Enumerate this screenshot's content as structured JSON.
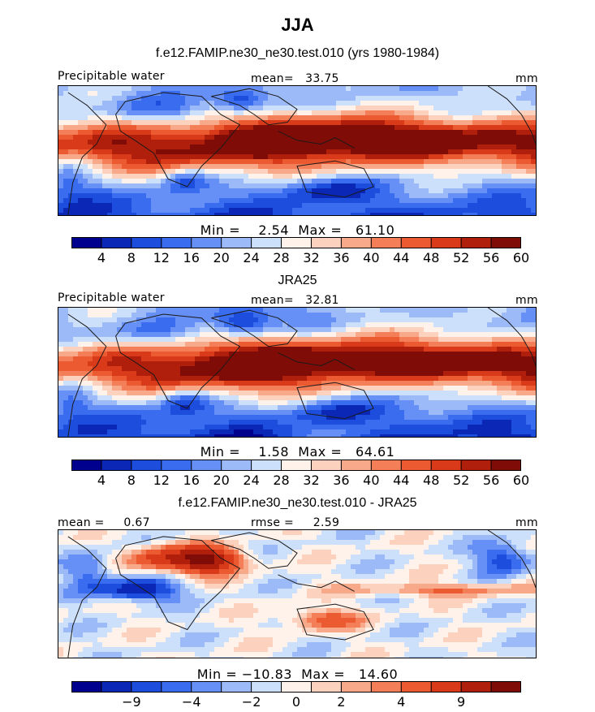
{
  "title": "JJA",
  "colors": {
    "seq": [
      "#00008f",
      "#0b27b6",
      "#1c4ddc",
      "#3a6cf0",
      "#6690f5",
      "#9bbaf7",
      "#cde0fb",
      "#fef2ea",
      "#fcd1bd",
      "#f7a98a",
      "#f37e57",
      "#eb5a31",
      "#d93a1a",
      "#b01f0c",
      "#7f0c06"
    ],
    "diff": [
      "#00008f",
      "#0b27b6",
      "#1c4ddc",
      "#3a6cf0",
      "#6690f5",
      "#9bbaf7",
      "#cde0fb",
      "#fef2ea",
      "#fcd1bd",
      "#f7a98a",
      "#f37e57",
      "#eb5a31",
      "#d93a1a",
      "#b01f0c",
      "#7f0c06"
    ],
    "coast": "#1a1a1a"
  },
  "panels": [
    {
      "title": "f.e12.FAMIP.ne30_ne30.test.010 (yrs 1980-1984)",
      "left_label": "Precipitable water",
      "center_label": "mean=   33.75",
      "right_label": "mm",
      "minmax": "Min =    2.54  Max =   61.10",
      "colorbar_ticks": [
        "4",
        "8",
        "12",
        "16",
        "20",
        "24",
        "28",
        "32",
        "36",
        "40",
        "44",
        "48",
        "52",
        "56",
        "60"
      ]
    },
    {
      "title": "JRA25",
      "left_label": "Precipitable water",
      "center_label": "mean=   32.81",
      "right_label": "mm",
      "minmax": "Min =    1.58  Max =   64.61",
      "colorbar_ticks": [
        "4",
        "8",
        "12",
        "16",
        "20",
        "24",
        "28",
        "32",
        "36",
        "40",
        "44",
        "48",
        "52",
        "56",
        "60"
      ]
    },
    {
      "title": "f.e12.FAMIP.ne30_ne30.test.010 - JRA25",
      "left_label": "mean =     0.67",
      "center_label": "rmse =     2.59",
      "right_label": "mm",
      "minmax": "Min = −10.83  Max =   14.60",
      "colorbar_ticks": [
        "−9",
        "−4",
        "−2",
        "0",
        "2",
        "4",
        "9"
      ]
    }
  ],
  "chart_data": [
    {
      "type": "heatmap",
      "title": "f.e12.FAMIP.ne30_ne30.test.010 (yrs 1980-1984)",
      "variable": "Precipitable water",
      "units": "mm",
      "mean": 33.75,
      "min": 2.54,
      "max": 61.1,
      "levels": [
        4,
        8,
        12,
        16,
        20,
        24,
        28,
        32,
        36,
        40,
        44,
        48,
        52,
        56,
        60
      ],
      "colormap": "blue-white-red"
    },
    {
      "type": "heatmap",
      "title": "JRA25",
      "variable": "Precipitable water",
      "units": "mm",
      "mean": 32.81,
      "min": 1.58,
      "max": 64.61,
      "levels": [
        4,
        8,
        12,
        16,
        20,
        24,
        28,
        32,
        36,
        40,
        44,
        48,
        52,
        56,
        60
      ],
      "colormap": "blue-white-red"
    },
    {
      "type": "heatmap",
      "title": "f.e12.FAMIP.ne30_ne30.test.010 - JRA25",
      "units": "mm",
      "mean": 0.67,
      "rmse": 2.59,
      "min": -10.83,
      "max": 14.6,
      "levels": [
        -9,
        -4,
        -2,
        0,
        2,
        4,
        9
      ],
      "colormap": "blue-white-red diverging"
    }
  ]
}
